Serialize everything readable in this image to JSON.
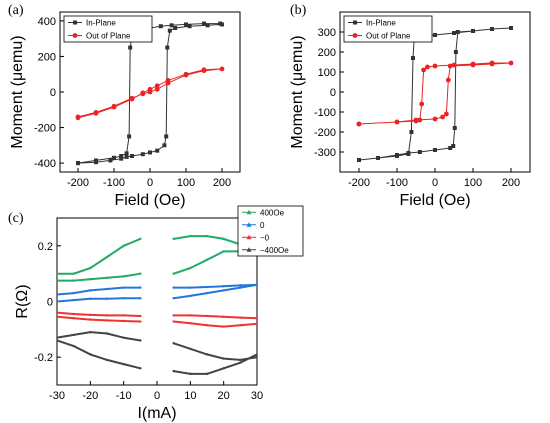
{
  "chart_data": [
    {
      "panel": "(a)",
      "type": "line",
      "xlabel": "Field (Oe)",
      "ylabel": "Moment (μemu)",
      "xlim": [
        -250,
        250
      ],
      "ylim": [
        -450,
        450
      ],
      "xticks": [
        -200,
        -100,
        0,
        100,
        200
      ],
      "yticks": [
        -400,
        -200,
        0,
        200,
        400
      ],
      "legend_position": "top-left",
      "series": [
        {
          "name": "In-Plane",
          "color": "#333333",
          "marker": "square",
          "x": [
            -200,
            -150,
            -100,
            -80,
            -65,
            -58,
            -55,
            -50,
            -40,
            -20,
            0,
            30,
            60,
            100,
            150,
            195,
            200,
            160,
            110,
            70,
            55,
            48,
            45,
            40,
            20,
            0,
            -20,
            -50,
            -65,
            -80,
            -110,
            -150,
            -200
          ],
          "y": [
            -400,
            -385,
            -370,
            -360,
            -345,
            -250,
            250,
            320,
            340,
            350,
            360,
            370,
            375,
            380,
            385,
            385,
            380,
            375,
            370,
            360,
            345,
            250,
            -250,
            -300,
            -330,
            -340,
            -350,
            -360,
            -365,
            -375,
            -385,
            -395,
            -400
          ]
        },
        {
          "name": "Out of Plane",
          "color": "#ee2222",
          "marker": "circle",
          "x": [
            -200,
            -150,
            -100,
            -50,
            -20,
            0,
            20,
            50,
            100,
            150,
            200,
            150,
            100,
            50,
            20,
            0,
            -20,
            -50,
            -100,
            -150,
            -200
          ],
          "y": [
            -140,
            -115,
            -80,
            -35,
            -10,
            0,
            15,
            50,
            95,
            120,
            130,
            125,
            100,
            65,
            35,
            15,
            -5,
            -40,
            -85,
            -120,
            -145
          ]
        }
      ]
    },
    {
      "panel": "(b)",
      "type": "line",
      "xlabel": "Field (Oe)",
      "ylabel": "Moment (μemu)",
      "xlim": [
        -250,
        250
      ],
      "ylim": [
        -400,
        400
      ],
      "xticks": [
        -200,
        -100,
        0,
        100,
        200
      ],
      "yticks": [
        -300,
        -200,
        -100,
        0,
        100,
        200,
        300
      ],
      "legend_position": "top-left",
      "series": [
        {
          "name": "In-Plane",
          "color": "#333333",
          "marker": "square",
          "x": [
            -200,
            -150,
            -100,
            -70,
            -62,
            -58,
            -55,
            -50,
            -20,
            0,
            50,
            100,
            150,
            200,
            150,
            100,
            60,
            55,
            52,
            48,
            40,
            0,
            -40,
            -70,
            -100,
            -150,
            -200
          ],
          "y": [
            -340,
            -330,
            -320,
            -310,
            -200,
            170,
            260,
            270,
            280,
            285,
            295,
            305,
            315,
            320,
            315,
            305,
            300,
            200,
            -180,
            -270,
            -280,
            -290,
            -300,
            -305,
            -315,
            -330,
            -340
          ]
        },
        {
          "name": "Out of Plane",
          "color": "#ee2222",
          "marker": "circle",
          "x": [
            -200,
            -100,
            -50,
            -40,
            -35,
            -30,
            -20,
            0,
            50,
            100,
            150,
            200,
            150,
            100,
            40,
            35,
            30,
            20,
            0,
            -50,
            -100,
            -200
          ],
          "y": [
            -160,
            -150,
            -145,
            -140,
            -60,
            110,
            125,
            130,
            135,
            140,
            145,
            145,
            140,
            135,
            130,
            60,
            -110,
            -125,
            -135,
            -140,
            -150,
            -160
          ]
        }
      ]
    },
    {
      "panel": "(c)",
      "type": "line",
      "xlabel": "I(mA)",
      "ylabel": "R(Ω)",
      "xlim": [
        -30,
        30
      ],
      "ylim": [
        -0.3,
        0.3
      ],
      "xticks": [
        -30,
        -20,
        -10,
        0,
        10,
        20,
        30
      ],
      "yticks": [
        -0.2,
        0,
        0.2
      ],
      "ytick_labels": [
        "-0.2",
        "0",
        "0.2"
      ],
      "legend_position": "top-right",
      "series": [
        {
          "name": "400Oe",
          "color": "#22aa66",
          "marker": "triangle",
          "x": [
            -30,
            -25,
            -20,
            -15,
            -10,
            -5,
            null,
            5,
            10,
            15,
            20,
            25,
            30,
            null,
            -30,
            -25,
            -20,
            -15,
            -10,
            -5,
            null,
            5,
            10,
            15,
            20,
            25,
            30
          ],
          "y": [
            0.1,
            0.1,
            0.12,
            0.16,
            0.2,
            0.225,
            null,
            0.225,
            0.235,
            0.235,
            0.225,
            0.205,
            0.18,
            null,
            0.075,
            0.075,
            0.08,
            0.085,
            0.09,
            0.1,
            null,
            0.1,
            0.12,
            0.15,
            0.18,
            0.18,
            0.165
          ]
        },
        {
          "name": "0",
          "color": "#2277dd",
          "marker": "triangle",
          "x": [
            -30,
            -25,
            -20,
            -15,
            -10,
            -5,
            null,
            5,
            10,
            15,
            20,
            25,
            30,
            null,
            -30,
            -25,
            -20,
            -15,
            -10,
            -5,
            null,
            5,
            10,
            15,
            20,
            25,
            30
          ],
          "y": [
            0.025,
            0.03,
            0.04,
            0.045,
            0.05,
            0.05,
            null,
            0.05,
            0.05,
            0.052,
            0.055,
            0.058,
            0.06,
            null,
            0.0,
            0.005,
            0.01,
            0.01,
            0.012,
            0.012,
            null,
            0.012,
            0.02,
            0.03,
            0.04,
            0.05,
            0.06
          ]
        },
        {
          "name": "−0",
          "color": "#ee3333",
          "marker": "triangle",
          "x": [
            -30,
            -25,
            -20,
            -15,
            -10,
            -5,
            null,
            5,
            10,
            15,
            20,
            25,
            30,
            null,
            -30,
            -25,
            -20,
            -15,
            -10,
            -5,
            null,
            5,
            10,
            15,
            20,
            25,
            30
          ],
          "y": [
            -0.04,
            -0.045,
            -0.048,
            -0.05,
            -0.05,
            -0.052,
            null,
            -0.05,
            -0.05,
            -0.052,
            -0.055,
            -0.058,
            -0.06,
            null,
            -0.055,
            -0.06,
            -0.065,
            -0.068,
            -0.07,
            -0.072,
            null,
            -0.072,
            -0.078,
            -0.085,
            -0.09,
            -0.085,
            -0.08
          ]
        },
        {
          "name": "−400Oe",
          "color": "#444444",
          "marker": "triangle",
          "x": [
            -30,
            -25,
            -20,
            -15,
            -10,
            -5,
            null,
            5,
            10,
            15,
            20,
            25,
            30,
            null,
            -30,
            -25,
            -20,
            -15,
            -10,
            -5,
            null,
            5,
            10,
            15,
            20,
            25,
            30
          ],
          "y": [
            -0.13,
            -0.12,
            -0.11,
            -0.115,
            -0.13,
            -0.14,
            null,
            -0.15,
            -0.17,
            -0.19,
            -0.205,
            -0.21,
            -0.2,
            null,
            -0.14,
            -0.16,
            -0.19,
            -0.21,
            -0.225,
            -0.24,
            null,
            -0.25,
            -0.26,
            -0.26,
            -0.24,
            -0.22,
            -0.19
          ]
        }
      ]
    }
  ]
}
